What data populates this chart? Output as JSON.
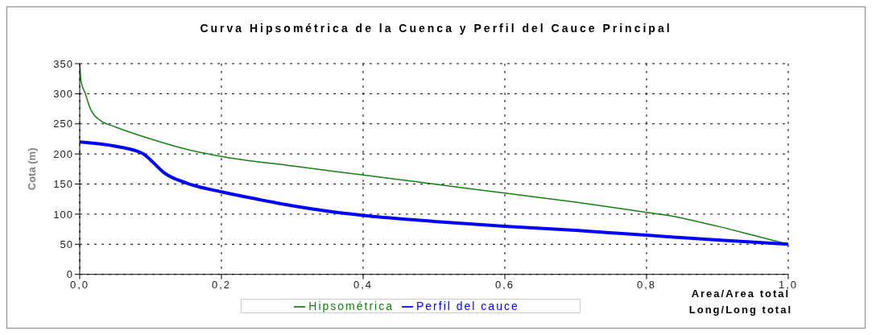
{
  "chart_data": {
    "type": "line",
    "title": "Curva Hipsométrica de la Cuenca y Perfil del Cauce Principal",
    "ylabel": "Cota (m)",
    "xlabel": "Area/Area total\nLong/Long total",
    "xlim": [
      0,
      1
    ],
    "xticks": [
      {
        "value": 0,
        "label": "0,0"
      },
      {
        "value": 0.2,
        "label": "0,2"
      },
      {
        "value": 0.4,
        "label": "0,4"
      },
      {
        "value": 0.6,
        "label": "0,6"
      },
      {
        "value": 0.8,
        "label": "0,8"
      },
      {
        "value": 1,
        "label": "1,0"
      }
    ],
    "ylim": [
      0,
      350
    ],
    "yticks": [
      0,
      50,
      100,
      150,
      200,
      250,
      300,
      350
    ],
    "grid": true,
    "legend": "bottom",
    "marker": "none",
    "line_style": "solid",
    "series": [
      {
        "name": "Hipsométrica",
        "color": "#138013",
        "x": [
          0,
          0.002,
          0.008,
          0.015,
          0.02,
          0.03,
          0.05,
          0.1,
          0.15,
          0.2,
          0.3,
          0.4,
          0.5,
          0.6,
          0.7,
          0.8,
          0.83,
          0.9,
          0.95,
          1
        ],
        "values": [
          350,
          320,
          300,
          275,
          265,
          255,
          245,
          225,
          208,
          196,
          180,
          165,
          150,
          135,
          120,
          103,
          98,
          80,
          65,
          50
        ]
      },
      {
        "name": "Perfil del cauce",
        "color": "#0000ff",
        "x": [
          0,
          0.05,
          0.08,
          0.09,
          0.1,
          0.12,
          0.15,
          0.2,
          0.25,
          0.3,
          0.35,
          0.4,
          0.5,
          0.6,
          0.7,
          0.8,
          0.9,
          1
        ],
        "values": [
          220,
          213,
          205,
          200,
          190,
          168,
          152,
          137,
          125,
          114,
          105,
          98,
          88,
          80,
          73,
          65,
          57,
          50
        ]
      }
    ]
  }
}
